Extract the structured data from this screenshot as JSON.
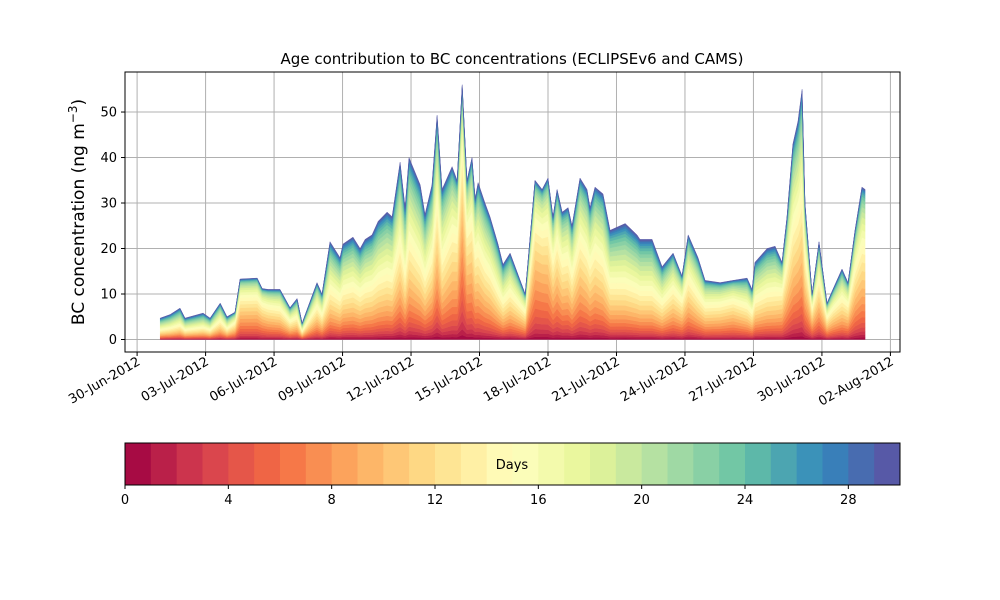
{
  "chart_data": {
    "type": "area",
    "stacked": true,
    "title": "Age contribution to BC concentrations (ECLIPSEv6 and CAMS)",
    "xlabel": "",
    "ylabel": "BC concentration (ng m$^{-3}$)",
    "ylabel_text": "BC concentration (ng m",
    "ylabel_sup": "−3",
    "ylabel_close": ")",
    "x_unit": "days since 30-Jun-2012",
    "xlim": [
      -0.53,
      33.42
    ],
    "ylim": [
      -2.75,
      58.8
    ],
    "yticks": [
      0,
      10,
      20,
      30,
      40,
      50
    ],
    "xticks": [
      {
        "day": 0,
        "label": "30-Jun-2012"
      },
      {
        "day": 3,
        "label": "03-Jul-2012"
      },
      {
        "day": 6,
        "label": "06-Jul-2012"
      },
      {
        "day": 9,
        "label": "09-Jul-2012"
      },
      {
        "day": 12,
        "label": "12-Jul-2012"
      },
      {
        "day": 15,
        "label": "15-Jul-2012"
      },
      {
        "day": 18,
        "label": "18-Jul-2012"
      },
      {
        "day": 21,
        "label": "21-Jul-2012"
      },
      {
        "day": 24,
        "label": "24-Jul-2012"
      },
      {
        "day": 27,
        "label": "27-Jul-2012"
      },
      {
        "day": 30,
        "label": "30-Jul-2012"
      },
      {
        "day": 33,
        "label": "02-Aug-2012"
      }
    ],
    "grid": true,
    "series_note": "30 age bins (0-30 days) stacked; total and approximate mean age per time",
    "points_columns": [
      "day",
      "total",
      "mean_age_days"
    ],
    "points": [
      [
        1.01,
        4.7,
        17
      ],
      [
        1.45,
        5.5,
        17
      ],
      [
        1.88,
        6.9,
        17
      ],
      [
        2.1,
        4.7,
        17
      ],
      [
        2.89,
        5.8,
        17
      ],
      [
        3.2,
        4.7,
        17
      ],
      [
        3.64,
        8.0,
        15
      ],
      [
        3.94,
        5.0,
        16
      ],
      [
        4.29,
        6.0,
        12
      ],
      [
        4.51,
        13.3,
        10
      ],
      [
        5.26,
        13.5,
        10
      ],
      [
        5.48,
        11.2,
        10
      ],
      [
        5.74,
        11.0,
        11
      ],
      [
        6.26,
        11.0,
        12
      ],
      [
        6.7,
        7.0,
        13
      ],
      [
        7.01,
        9.0,
        14
      ],
      [
        7.23,
        3.6,
        15
      ],
      [
        7.88,
        12.5,
        13
      ],
      [
        8.1,
        10.0,
        14
      ],
      [
        8.45,
        21.5,
        15
      ],
      [
        8.89,
        18.0,
        15
      ],
      [
        9.02,
        21.0,
        15
      ],
      [
        9.46,
        22.5,
        15
      ],
      [
        9.77,
        20.0,
        15
      ],
      [
        9.99,
        22.0,
        15
      ],
      [
        10.29,
        23.0,
        15
      ],
      [
        10.56,
        26.0,
        15
      ],
      [
        10.95,
        28.0,
        15
      ],
      [
        11.17,
        27.0,
        15
      ],
      [
        11.52,
        39.0,
        14
      ],
      [
        11.74,
        29.0,
        15
      ],
      [
        11.91,
        40.0,
        14
      ],
      [
        12.4,
        34.0,
        15
      ],
      [
        12.61,
        27.5,
        15
      ],
      [
        12.92,
        34.0,
        14
      ],
      [
        13.14,
        49.3,
        12
      ],
      [
        13.36,
        33.0,
        14
      ],
      [
        13.8,
        38.0,
        12
      ],
      [
        14.02,
        35.0,
        11
      ],
      [
        14.24,
        56.0,
        8
      ],
      [
        14.45,
        35.0,
        10
      ],
      [
        14.67,
        40.0,
        11
      ],
      [
        14.81,
        31.0,
        12
      ],
      [
        14.94,
        34.5,
        13
      ],
      [
        15.24,
        30.0,
        14
      ],
      [
        15.46,
        27.0,
        14
      ],
      [
        15.81,
        21.0,
        15
      ],
      [
        16.03,
        16.5,
        15
      ],
      [
        16.34,
        19.0,
        14
      ],
      [
        17.0,
        10.0,
        12
      ],
      [
        17.43,
        35.0,
        9
      ],
      [
        17.74,
        33.0,
        9
      ],
      [
        18.0,
        35.5,
        10
      ],
      [
        18.22,
        27.0,
        11
      ],
      [
        18.4,
        33.0,
        11
      ],
      [
        18.62,
        28.0,
        12
      ],
      [
        18.88,
        29.0,
        12
      ],
      [
        19.05,
        25.0,
        13
      ],
      [
        19.4,
        35.5,
        12
      ],
      [
        19.71,
        33.0,
        13
      ],
      [
        19.84,
        29.0,
        13
      ],
      [
        20.06,
        33.5,
        13
      ],
      [
        20.41,
        32.0,
        14
      ],
      [
        20.72,
        24.0,
        15
      ],
      [
        21.38,
        25.5,
        16
      ],
      [
        21.9,
        23.0,
        16
      ],
      [
        22.03,
        22.0,
        16
      ],
      [
        22.56,
        22.0,
        16
      ],
      [
        23.0,
        16.0,
        15
      ],
      [
        23.48,
        19.0,
        13
      ],
      [
        23.87,
        14.0,
        12
      ],
      [
        24.14,
        23.0,
        13
      ],
      [
        24.57,
        18.0,
        14
      ],
      [
        24.88,
        13.0,
        13
      ],
      [
        25.54,
        12.5,
        12
      ],
      [
        26.11,
        13.0,
        11
      ],
      [
        26.72,
        13.5,
        14
      ],
      [
        26.94,
        11.0,
        14
      ],
      [
        27.07,
        17.0,
        15
      ],
      [
        27.6,
        20.0,
        15
      ],
      [
        27.95,
        20.5,
        15
      ],
      [
        28.25,
        17.0,
        12
      ],
      [
        28.47,
        27.0,
        12
      ],
      [
        28.73,
        43.0,
        13
      ],
      [
        28.95,
        48.0,
        13
      ],
      [
        29.13,
        55.0,
        13
      ],
      [
        29.26,
        30.0,
        12
      ],
      [
        29.57,
        10.0,
        10
      ],
      [
        29.87,
        21.5,
        12
      ],
      [
        30.22,
        8.0,
        12
      ],
      [
        30.48,
        11.0,
        12
      ],
      [
        30.88,
        15.5,
        13
      ],
      [
        31.14,
        12.5,
        12
      ],
      [
        31.45,
        24.0,
        11
      ],
      [
        31.75,
        33.5,
        12
      ],
      [
        31.89,
        33.0,
        12
      ]
    ],
    "colorbar": {
      "label": "Days",
      "range": [
        0,
        30
      ],
      "n_bins": 30,
      "ticks": [
        0,
        4,
        8,
        12,
        16,
        20,
        24,
        28
      ],
      "colormap_stops": [
        "#9e0142",
        "#d53e4f",
        "#f46d43",
        "#fdae61",
        "#fee08b",
        "#ffffbf",
        "#e6f598",
        "#abdda4",
        "#66c2a5",
        "#3288bd",
        "#5e4fa2"
      ]
    }
  }
}
